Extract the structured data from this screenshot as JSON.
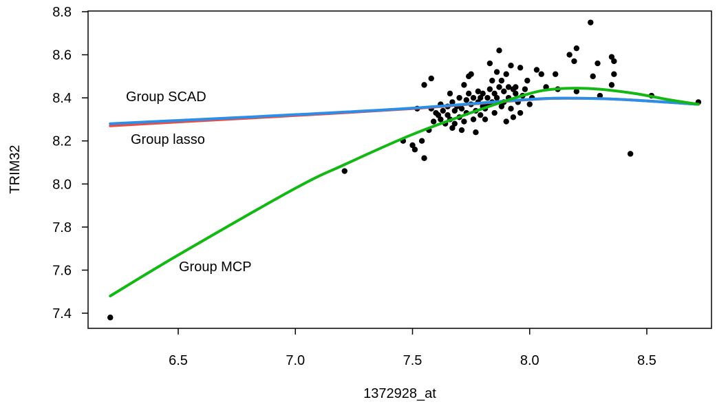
{
  "chart_data": {
    "type": "scatter",
    "title": "",
    "xlabel": "1372928_at",
    "ylabel": "TRIM32",
    "xlim": [
      6.2,
      8.72
    ],
    "ylim": [
      7.36,
      8.8
    ],
    "grid": false,
    "x_ticks": [
      "6.5",
      "7.0",
      "7.5",
      "8.0",
      "8.5"
    ],
    "y_ticks": [
      "7.4",
      "7.6",
      "7.8",
      "8.0",
      "8.2",
      "8.4",
      "8.6",
      "8.8"
    ],
    "points": [
      [
        6.21,
        7.38
      ],
      [
        7.21,
        8.06
      ],
      [
        7.46,
        8.2
      ],
      [
        7.5,
        8.18
      ],
      [
        7.51,
        8.16
      ],
      [
        7.52,
        8.35
      ],
      [
        7.54,
        8.2
      ],
      [
        7.55,
        8.12
      ],
      [
        7.55,
        8.46
      ],
      [
        7.57,
        8.25
      ],
      [
        7.58,
        8.49
      ],
      [
        7.58,
        8.35
      ],
      [
        7.59,
        8.29
      ],
      [
        7.6,
        8.33
      ],
      [
        7.61,
        8.32
      ],
      [
        7.62,
        8.3
      ],
      [
        7.62,
        8.37
      ],
      [
        7.63,
        8.34
      ],
      [
        7.64,
        8.28
      ],
      [
        7.65,
        8.36
      ],
      [
        7.65,
        8.32
      ],
      [
        7.66,
        8.42
      ],
      [
        7.66,
        8.3
      ],
      [
        7.67,
        8.26
      ],
      [
        7.67,
        8.38
      ],
      [
        7.68,
        8.34
      ],
      [
        7.68,
        8.28
      ],
      [
        7.69,
        8.36
      ],
      [
        7.7,
        8.31
      ],
      [
        7.7,
        8.4
      ],
      [
        7.71,
        8.25
      ],
      [
        7.71,
        8.35
      ],
      [
        7.72,
        8.46
      ],
      [
        7.72,
        8.29
      ],
      [
        7.73,
        8.39
      ],
      [
        7.73,
        8.33
      ],
      [
        7.74,
        8.5
      ],
      [
        7.74,
        8.42
      ],
      [
        7.75,
        8.51
      ],
      [
        7.75,
        8.37
      ],
      [
        7.76,
        8.3
      ],
      [
        7.76,
        8.4
      ],
      [
        7.77,
        8.24
      ],
      [
        7.77,
        8.34
      ],
      [
        7.78,
        8.38
      ],
      [
        7.78,
        8.43
      ],
      [
        7.79,
        8.4
      ],
      [
        7.79,
        8.32
      ],
      [
        7.8,
        8.36
      ],
      [
        7.8,
        8.42
      ],
      [
        7.81,
        8.35
      ],
      [
        7.81,
        8.3
      ],
      [
        7.82,
        8.4
      ],
      [
        7.82,
        8.37
      ],
      [
        7.83,
        8.56
      ],
      [
        7.83,
        8.44
      ],
      [
        7.84,
        8.38
      ],
      [
        7.84,
        8.48
      ],
      [
        7.85,
        8.42
      ],
      [
        7.85,
        8.33
      ],
      [
        7.86,
        8.52
      ],
      [
        7.86,
        8.4
      ],
      [
        7.87,
        8.62
      ],
      [
        7.87,
        8.45
      ],
      [
        7.88,
        8.36
      ],
      [
        7.88,
        8.48
      ],
      [
        7.89,
        8.43
      ],
      [
        7.89,
        8.38
      ],
      [
        7.9,
        8.51
      ],
      [
        7.9,
        8.29
      ],
      [
        7.91,
        8.45
      ],
      [
        7.91,
        8.4
      ],
      [
        7.92,
        8.55
      ],
      [
        7.92,
        8.35
      ],
      [
        7.93,
        8.44
      ],
      [
        7.93,
        8.31
      ],
      [
        7.94,
        8.45
      ],
      [
        7.94,
        8.42
      ],
      [
        7.95,
        8.38
      ],
      [
        7.96,
        8.54
      ],
      [
        7.96,
        8.33
      ],
      [
        7.97,
        8.41
      ],
      [
        7.98,
        8.44
      ],
      [
        7.99,
        8.48
      ],
      [
        8.0,
        8.37
      ],
      [
        8.01,
        8.4
      ],
      [
        8.03,
        8.53
      ],
      [
        8.05,
        8.51
      ],
      [
        8.07,
        8.45
      ],
      [
        8.11,
        8.51
      ],
      [
        8.12,
        8.44
      ],
      [
        8.17,
        8.6
      ],
      [
        8.19,
        8.57
      ],
      [
        8.2,
        8.63
      ],
      [
        8.2,
        8.43
      ],
      [
        8.26,
        8.75
      ],
      [
        8.27,
        8.5
      ],
      [
        8.29,
        8.56
      ],
      [
        8.3,
        8.41
      ],
      [
        8.35,
        8.59
      ],
      [
        8.35,
        8.46
      ],
      [
        8.36,
        8.57
      ],
      [
        8.36,
        8.51
      ],
      [
        8.43,
        8.14
      ],
      [
        8.52,
        8.41
      ],
      [
        8.72,
        8.38
      ]
    ],
    "series": [
      {
        "name": "Group lasso",
        "color": "#ef4b41",
        "x": [
          6.21,
          6.5,
          7.0,
          7.5,
          8.0,
          8.2,
          8.4,
          8.72
        ],
        "y": [
          8.27,
          8.288,
          8.318,
          8.35,
          8.392,
          8.398,
          8.392,
          8.37
        ]
      },
      {
        "name": "Group SCAD",
        "color": "#2b8fe8",
        "x": [
          6.21,
          6.5,
          7.0,
          7.5,
          8.0,
          8.2,
          8.4,
          8.72
        ],
        "y": [
          8.28,
          8.295,
          8.322,
          8.352,
          8.393,
          8.398,
          8.392,
          8.37
        ]
      },
      {
        "name": "Group MCP",
        "color": "#14b814",
        "x": [
          6.21,
          6.5,
          7.0,
          7.21,
          7.5,
          7.8,
          8.0,
          8.1,
          8.2,
          8.3,
          8.45,
          8.6,
          8.72
        ],
        "y": [
          7.48,
          7.67,
          7.98,
          8.09,
          8.23,
          8.35,
          8.42,
          8.44,
          8.445,
          8.44,
          8.42,
          8.39,
          8.37
        ]
      }
    ],
    "annotations": [
      {
        "text": "Group SCAD",
        "series": "Group SCAD"
      },
      {
        "text": "Group lasso",
        "series": "Group lasso"
      },
      {
        "text": "Group MCP",
        "series": "Group MCP"
      }
    ]
  }
}
